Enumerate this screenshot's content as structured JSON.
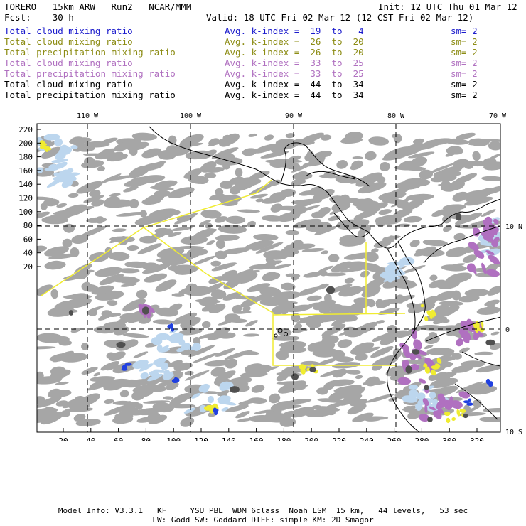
{
  "header": {
    "model": "TORERO   15km ARW   Run2   NCAR/MMM",
    "init": "Init: 12 UTC Thu 01 Mar 12",
    "forecast": "Fcst:    30 h",
    "valid": "Valid: 18 UTC Fri 02 Mar 12 (12 CST Fri 02 Mar 12)"
  },
  "legend": [
    {
      "field": "Total cloud mixing ratio",
      "kindex": "Avg. k-index =  19  to   4",
      "sm": "sm= 2",
      "color": "#1a1acc"
    },
    {
      "field": "Total cloud mixing ratio",
      "kindex": "Avg. k-index =  26  to  20",
      "sm": "sm= 2",
      "color": "#8c8c14"
    },
    {
      "field": "Total precipitation mixing ratio",
      "kindex": "Avg. k-index =  26  to  20",
      "sm": "sm= 2",
      "color": "#8c8c14"
    },
    {
      "field": "Total cloud mixing ratio",
      "kindex": "Avg. k-index =  33  to  25",
      "sm": "sm= 2",
      "color": "#b070c0"
    },
    {
      "field": "Total precipitation mixing ratio",
      "kindex": "Avg. k-index =  33  to  25",
      "sm": "sm= 2",
      "color": "#b070c0"
    },
    {
      "field": "Total cloud mixing ratio",
      "kindex": "Avg. k-index =  44  to  34",
      "sm": "sm= 2",
      "color": "#000000"
    },
    {
      "field": "Total precipitation mixing ratio",
      "kindex": "Avg. k-index =  44  to  34",
      "sm": "sm= 2",
      "color": "#000000"
    }
  ],
  "map": {
    "top_lon_labels": [
      "110 W",
      "100 W",
      "90 W",
      "80 W",
      "70 W"
    ],
    "right_lat_labels": [
      "10 N",
      "0",
      "10 S"
    ],
    "left_ticks": [
      "220",
      "200",
      "180",
      "160",
      "140",
      "120",
      "100",
      "80",
      "60",
      "40",
      "20"
    ],
    "bottom_ticks": [
      "20",
      "40",
      "60",
      "80",
      "100",
      "120",
      "140",
      "160",
      "180",
      "200",
      "220",
      "240",
      "260",
      "280",
      "300",
      "320"
    ],
    "colors": {
      "cloud_gray": "#a6a6a6",
      "light_blue": "#bcd6ee",
      "blue": "#2040e0",
      "purple": "#b070c0",
      "yellow": "#f0ec30",
      "dark": "#505050"
    }
  },
  "footer": {
    "line1": "Model Info: V3.3.1   KF     YSU PBL  WDM 6class  Noah LSM  15 km,   44 levels,   53 sec",
    "line2": "LW: Godd SW: Goddard DIFF: simple KM: 2D Smagor"
  }
}
